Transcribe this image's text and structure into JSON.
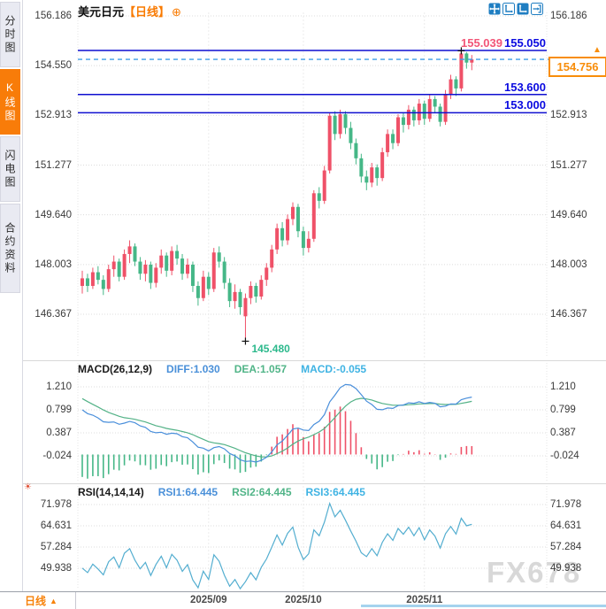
{
  "header": {
    "symbol": "美元日元",
    "period_tag": "【日线】"
  },
  "icons": {
    "gear": "⊕",
    "period_up_arrow": "▲",
    "indicator_settings": "☀",
    "price_marker_arrow": "▲"
  },
  "toolbar_icons": [
    "pan-crosshair-icon",
    "axis-range-icon",
    "axis-range-active-icon",
    "collapse-panel-icon"
  ],
  "sidebar": {
    "tabs": [
      {
        "label": "分时图",
        "active": false
      },
      {
        "label": "K线图",
        "active": true
      },
      {
        "label": "闪电图",
        "active": false
      },
      {
        "label": "合约资料",
        "active": false
      }
    ]
  },
  "bottom_bar": {
    "period_label": "日线"
  },
  "watermark": "FX678",
  "colors": {
    "up": "#ef5168",
    "down": "#45b787",
    "hline_blue": "#0f0fd0",
    "dashed_blue": "#3d9de8",
    "accent_orange": "#f7820a",
    "high_pink": "#f25577",
    "low_green": "#2cb98c",
    "diff_line": "#4a8fdb",
    "dea_line": "#53b287",
    "rsi_line": "#54aed0",
    "grid": "#dcdcdc",
    "divider": "#d8d8d8",
    "scrollbar": "#a5d3ee"
  },
  "chart_data": {
    "type": "candlestick+indicators",
    "symbol": "美元日元",
    "period": "日线",
    "price_panel": {
      "tick_labels": [
        "156.186",
        "154.550",
        "152.913",
        "151.277",
        "149.640",
        "148.003",
        "146.367"
      ],
      "hlines": [
        {
          "value": 155.05,
          "label": "155.050"
        },
        {
          "value": 153.6,
          "label": "153.600"
        },
        {
          "value": 153.0,
          "label": "153.000"
        }
      ],
      "current_price": {
        "value": 154.756,
        "label": "154.756"
      },
      "high_marker": {
        "value": 155.039,
        "label": "155.039",
        "index": 72
      },
      "low_marker": {
        "value": 145.48,
        "label": "145.480",
        "index": 31
      },
      "candles": [
        [
          147.3,
          147.8,
          147.05,
          147.55
        ],
        [
          147.55,
          147.7,
          147.1,
          147.3
        ],
        [
          147.3,
          147.9,
          147.2,
          147.75
        ],
        [
          147.75,
          147.95,
          147.35,
          147.5
        ],
        [
          147.5,
          147.65,
          147.0,
          147.2
        ],
        [
          147.2,
          148.0,
          147.1,
          147.85
        ],
        [
          147.85,
          148.3,
          147.6,
          148.1
        ],
        [
          148.1,
          148.2,
          147.45,
          147.6
        ],
        [
          147.6,
          148.5,
          147.5,
          148.35
        ],
        [
          148.35,
          148.8,
          148.05,
          148.6
        ],
        [
          148.6,
          148.7,
          147.95,
          148.1
        ],
        [
          148.1,
          148.25,
          147.5,
          147.7
        ],
        [
          147.7,
          148.15,
          147.45,
          148.0
        ],
        [
          148.0,
          148.1,
          147.2,
          147.4
        ],
        [
          147.4,
          148.05,
          147.25,
          147.9
        ],
        [
          147.9,
          148.5,
          147.7,
          148.3
        ],
        [
          148.3,
          148.4,
          147.6,
          147.8
        ],
        [
          147.8,
          148.6,
          147.65,
          148.45
        ],
        [
          148.45,
          148.65,
          148.0,
          148.2
        ],
        [
          148.2,
          148.35,
          147.5,
          147.7
        ],
        [
          147.7,
          148.2,
          147.55,
          148.0
        ],
        [
          148.0,
          148.1,
          147.1,
          147.3
        ],
        [
          147.3,
          147.45,
          146.65,
          146.9
        ],
        [
          146.9,
          147.8,
          146.8,
          147.6
        ],
        [
          147.6,
          147.75,
          147.0,
          147.2
        ],
        [
          147.2,
          148.55,
          147.1,
          148.4
        ],
        [
          148.4,
          148.6,
          147.9,
          148.1
        ],
        [
          148.1,
          148.25,
          147.2,
          147.4
        ],
        [
          147.4,
          147.55,
          146.6,
          146.8
        ],
        [
          146.8,
          147.35,
          146.55,
          147.1
        ],
        [
          147.1,
          147.2,
          146.35,
          146.6
        ],
        [
          146.3,
          147.05,
          145.48,
          146.9
        ],
        [
          146.9,
          147.45,
          146.7,
          147.3
        ],
        [
          147.3,
          147.4,
          146.75,
          146.95
        ],
        [
          146.95,
          147.65,
          146.85,
          147.5
        ],
        [
          147.5,
          148.05,
          147.3,
          147.9
        ],
        [
          147.9,
          148.65,
          147.75,
          148.5
        ],
        [
          148.5,
          149.35,
          148.35,
          149.2
        ],
        [
          149.2,
          149.4,
          148.6,
          148.8
        ],
        [
          148.8,
          149.65,
          148.65,
          149.5
        ],
        [
          149.5,
          150.05,
          149.3,
          149.9
        ],
        [
          149.9,
          150.0,
          148.9,
          149.1
        ],
        [
          149.1,
          149.25,
          148.3,
          148.55
        ],
        [
          148.55,
          149.1,
          148.4,
          148.85
        ],
        [
          148.85,
          150.45,
          148.75,
          150.35
        ],
        [
          150.35,
          150.55,
          149.85,
          150.1
        ],
        [
          150.1,
          151.25,
          150.0,
          151.1
        ],
        [
          151.1,
          153.0,
          151.0,
          152.9
        ],
        [
          152.9,
          153.05,
          152.1,
          152.3
        ],
        [
          152.3,
          153.1,
          152.15,
          152.95
        ],
        [
          152.95,
          153.05,
          152.3,
          152.5
        ],
        [
          152.5,
          152.7,
          151.8,
          152.0
        ],
        [
          152.0,
          152.15,
          151.3,
          151.5
        ],
        [
          151.5,
          151.65,
          150.7,
          150.9
        ],
        [
          150.9,
          151.1,
          150.45,
          150.7
        ],
        [
          150.7,
          151.35,
          150.55,
          151.2
        ],
        [
          151.2,
          151.3,
          150.6,
          150.85
        ],
        [
          150.85,
          151.85,
          150.75,
          151.7
        ],
        [
          151.7,
          152.45,
          151.55,
          152.3
        ],
        [
          152.3,
          152.45,
          151.8,
          152.0
        ],
        [
          152.0,
          152.95,
          151.9,
          152.85
        ],
        [
          152.85,
          153.0,
          152.35,
          152.6
        ],
        [
          152.6,
          153.25,
          152.45,
          153.1
        ],
        [
          153.1,
          153.2,
          152.55,
          152.75
        ],
        [
          152.75,
          153.45,
          152.6,
          153.3
        ],
        [
          153.3,
          153.4,
          152.6,
          152.8
        ],
        [
          152.8,
          153.6,
          152.7,
          153.45
        ],
        [
          153.45,
          153.55,
          153.0,
          153.2
        ],
        [
          153.2,
          153.3,
          152.55,
          152.7
        ],
        [
          152.7,
          153.75,
          152.6,
          153.6
        ],
        [
          153.6,
          154.25,
          153.45,
          154.1
        ],
        [
          154.1,
          154.2,
          153.55,
          153.8
        ],
        [
          153.8,
          155.039,
          153.7,
          154.95
        ],
        [
          154.95,
          155.0,
          154.45,
          154.65
        ],
        [
          154.65,
          154.9,
          154.4,
          154.756
        ]
      ]
    },
    "macd_panel": {
      "title": "MACD(26,12,9)",
      "readout_diff": "DIFF:1.030",
      "readout_dea": "DEA:1.057",
      "readout_macd": "MACD:-0.055",
      "ticks": [
        "1.210",
        "0.799",
        "0.387",
        "-0.024"
      ]
    },
    "rsi_panel": {
      "title": "RSI(14,14,14)",
      "readout_1": "RSI1:64.445",
      "readout_2": "RSI2:64.445",
      "readout_3": "RSI3:64.445",
      "ticks": [
        "71.978",
        "64.631",
        "57.284",
        "49.938"
      ]
    },
    "x_axis": {
      "labels": [
        "2025/09",
        "2025/10",
        "2025/11"
      ],
      "first_candle_indices": [
        24,
        42,
        65
      ]
    }
  }
}
